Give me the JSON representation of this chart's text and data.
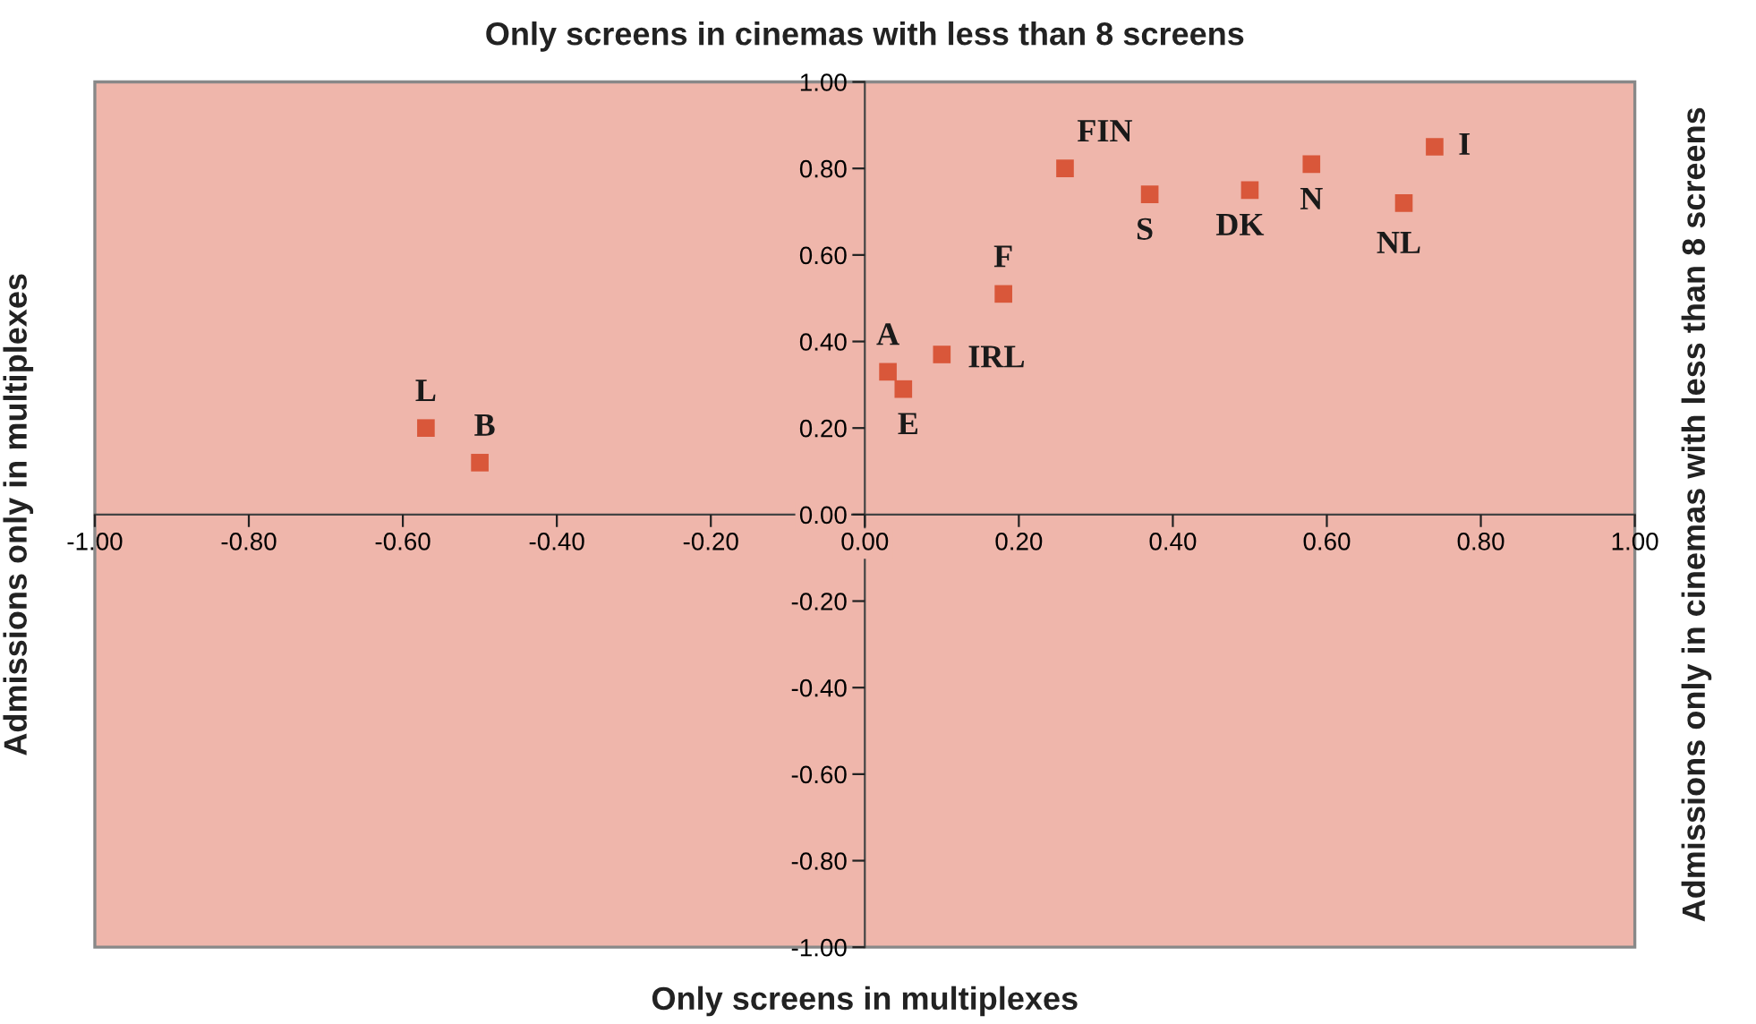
{
  "chart_data": {
    "type": "scatter",
    "xlabel": "Only screens in multiplexes",
    "ylabel": "Admissions only in multiplexes",
    "x2label": "Only screens in cinemas with less than 8 screens",
    "y2label": "Admissions only in cinemas with less than 8 screens",
    "x": [
      -0.57,
      -0.5,
      0.03,
      0.05,
      0.1,
      0.18,
      0.26,
      0.37,
      0.5,
      0.58,
      0.7,
      0.74
    ],
    "series": [
      {
        "color": "#d9573a",
        "values": [
          0.2,
          0.12,
          0.33,
          0.29,
          0.37,
          0.51,
          0.8,
          0.74,
          0.75,
          0.81,
          0.72,
          0.85
        ]
      }
    ],
    "annotations": [
      {
        "text": "L",
        "x": -0.57,
        "y": 0.2
      },
      {
        "text": "B",
        "x": -0.5,
        "y": 0.12
      },
      {
        "text": "A",
        "x": 0.03,
        "y": 0.33
      },
      {
        "text": "E",
        "x": 0.05,
        "y": 0.29
      },
      {
        "text": "IRL",
        "x": 0.1,
        "y": 0.37
      },
      {
        "text": "F",
        "x": 0.18,
        "y": 0.51
      },
      {
        "text": "FIN",
        "x": 0.26,
        "y": 0.8
      },
      {
        "text": "S",
        "x": 0.37,
        "y": 0.74
      },
      {
        "text": "DK",
        "x": 0.5,
        "y": 0.75
      },
      {
        "text": "N",
        "x": 0.58,
        "y": 0.81
      },
      {
        "text": "NL",
        "x": 0.7,
        "y": 0.72
      },
      {
        "text": "I",
        "x": 0.74,
        "y": 0.85
      }
    ],
    "xlim": [
      -1,
      1
    ],
    "ylim": [
      -1,
      1
    ],
    "xticks": [
      {
        "value": -1,
        "label": "-1.00"
      },
      {
        "value": -0.8,
        "label": "-0.80"
      },
      {
        "value": -0.6,
        "label": "-0.60"
      },
      {
        "value": -0.4,
        "label": "-0.40"
      },
      {
        "value": -0.2,
        "label": "-0.20"
      },
      {
        "value": 0,
        "label": "0.00"
      },
      {
        "value": 0.2,
        "label": "0.20"
      },
      {
        "value": 0.4,
        "label": "0.40"
      },
      {
        "value": 0.6,
        "label": "0.60"
      },
      {
        "value": 0.8,
        "label": "0.80"
      },
      {
        "value": 1,
        "label": "1.00"
      }
    ],
    "yticks": [
      {
        "value": -1,
        "label": "-1.00"
      },
      {
        "value": -0.8,
        "label": "-0.80"
      },
      {
        "value": -0.6,
        "label": "-0.60"
      },
      {
        "value": -0.4,
        "label": "-0.40"
      },
      {
        "value": -0.2,
        "label": "-0.20"
      },
      {
        "value": 0,
        "label": "0.00"
      },
      {
        "value": 0.2,
        "label": "0.20"
      },
      {
        "value": 0.4,
        "label": "0.40"
      },
      {
        "value": 0.6,
        "label": "0.60"
      },
      {
        "value": 0.8,
        "label": "0.80"
      },
      {
        "value": 1,
        "label": "1.00"
      }
    ],
    "grid": false,
    "legend": false,
    "marker": "square"
  }
}
